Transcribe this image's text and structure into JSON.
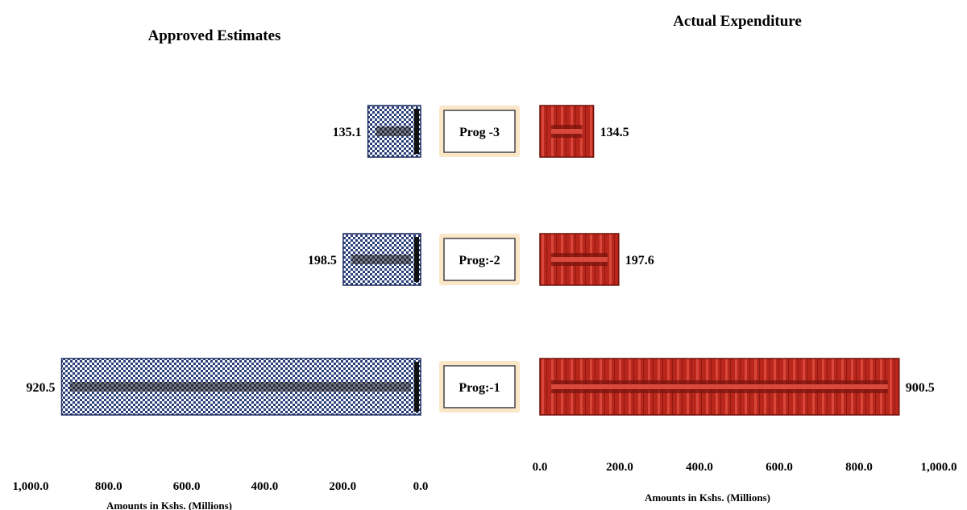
{
  "chart_data": {
    "type": "bar",
    "orientation": "horizontal-butterfly",
    "categories": [
      "Prog -3",
      "Prog:-2",
      "Prog:-1"
    ],
    "series": [
      {
        "name": "Approved Estimates",
        "values": [
          135.1,
          198.5,
          920.5
        ],
        "color": "#2a3f7a",
        "side": "left"
      },
      {
        "name": "Actual Expenditure",
        "values": [
          134.5,
          197.6,
          900.5
        ],
        "color": "#c0271d",
        "side": "right"
      }
    ],
    "value_labels": {
      "Approved Estimates": [
        "135.1",
        "198.5",
        "920.5"
      ],
      "Actual Expenditure": [
        "134.5",
        "197.6",
        "900.5"
      ]
    },
    "left_axis": {
      "range": [
        0,
        1000
      ],
      "reversed": true,
      "ticks": [
        "1,000.0",
        "800.0",
        "600.0",
        "400.0",
        "200.0",
        "0.0"
      ],
      "title": "Amounts in Kshs. (Millions)"
    },
    "right_axis": {
      "range": [
        0,
        1000
      ],
      "ticks": [
        "0.0",
        "200.0",
        "400.0",
        "600.0",
        "800.0",
        "1,000.0"
      ],
      "title": "Amounts in Kshs. (Millions)"
    },
    "grid": false,
    "legend": "none"
  }
}
